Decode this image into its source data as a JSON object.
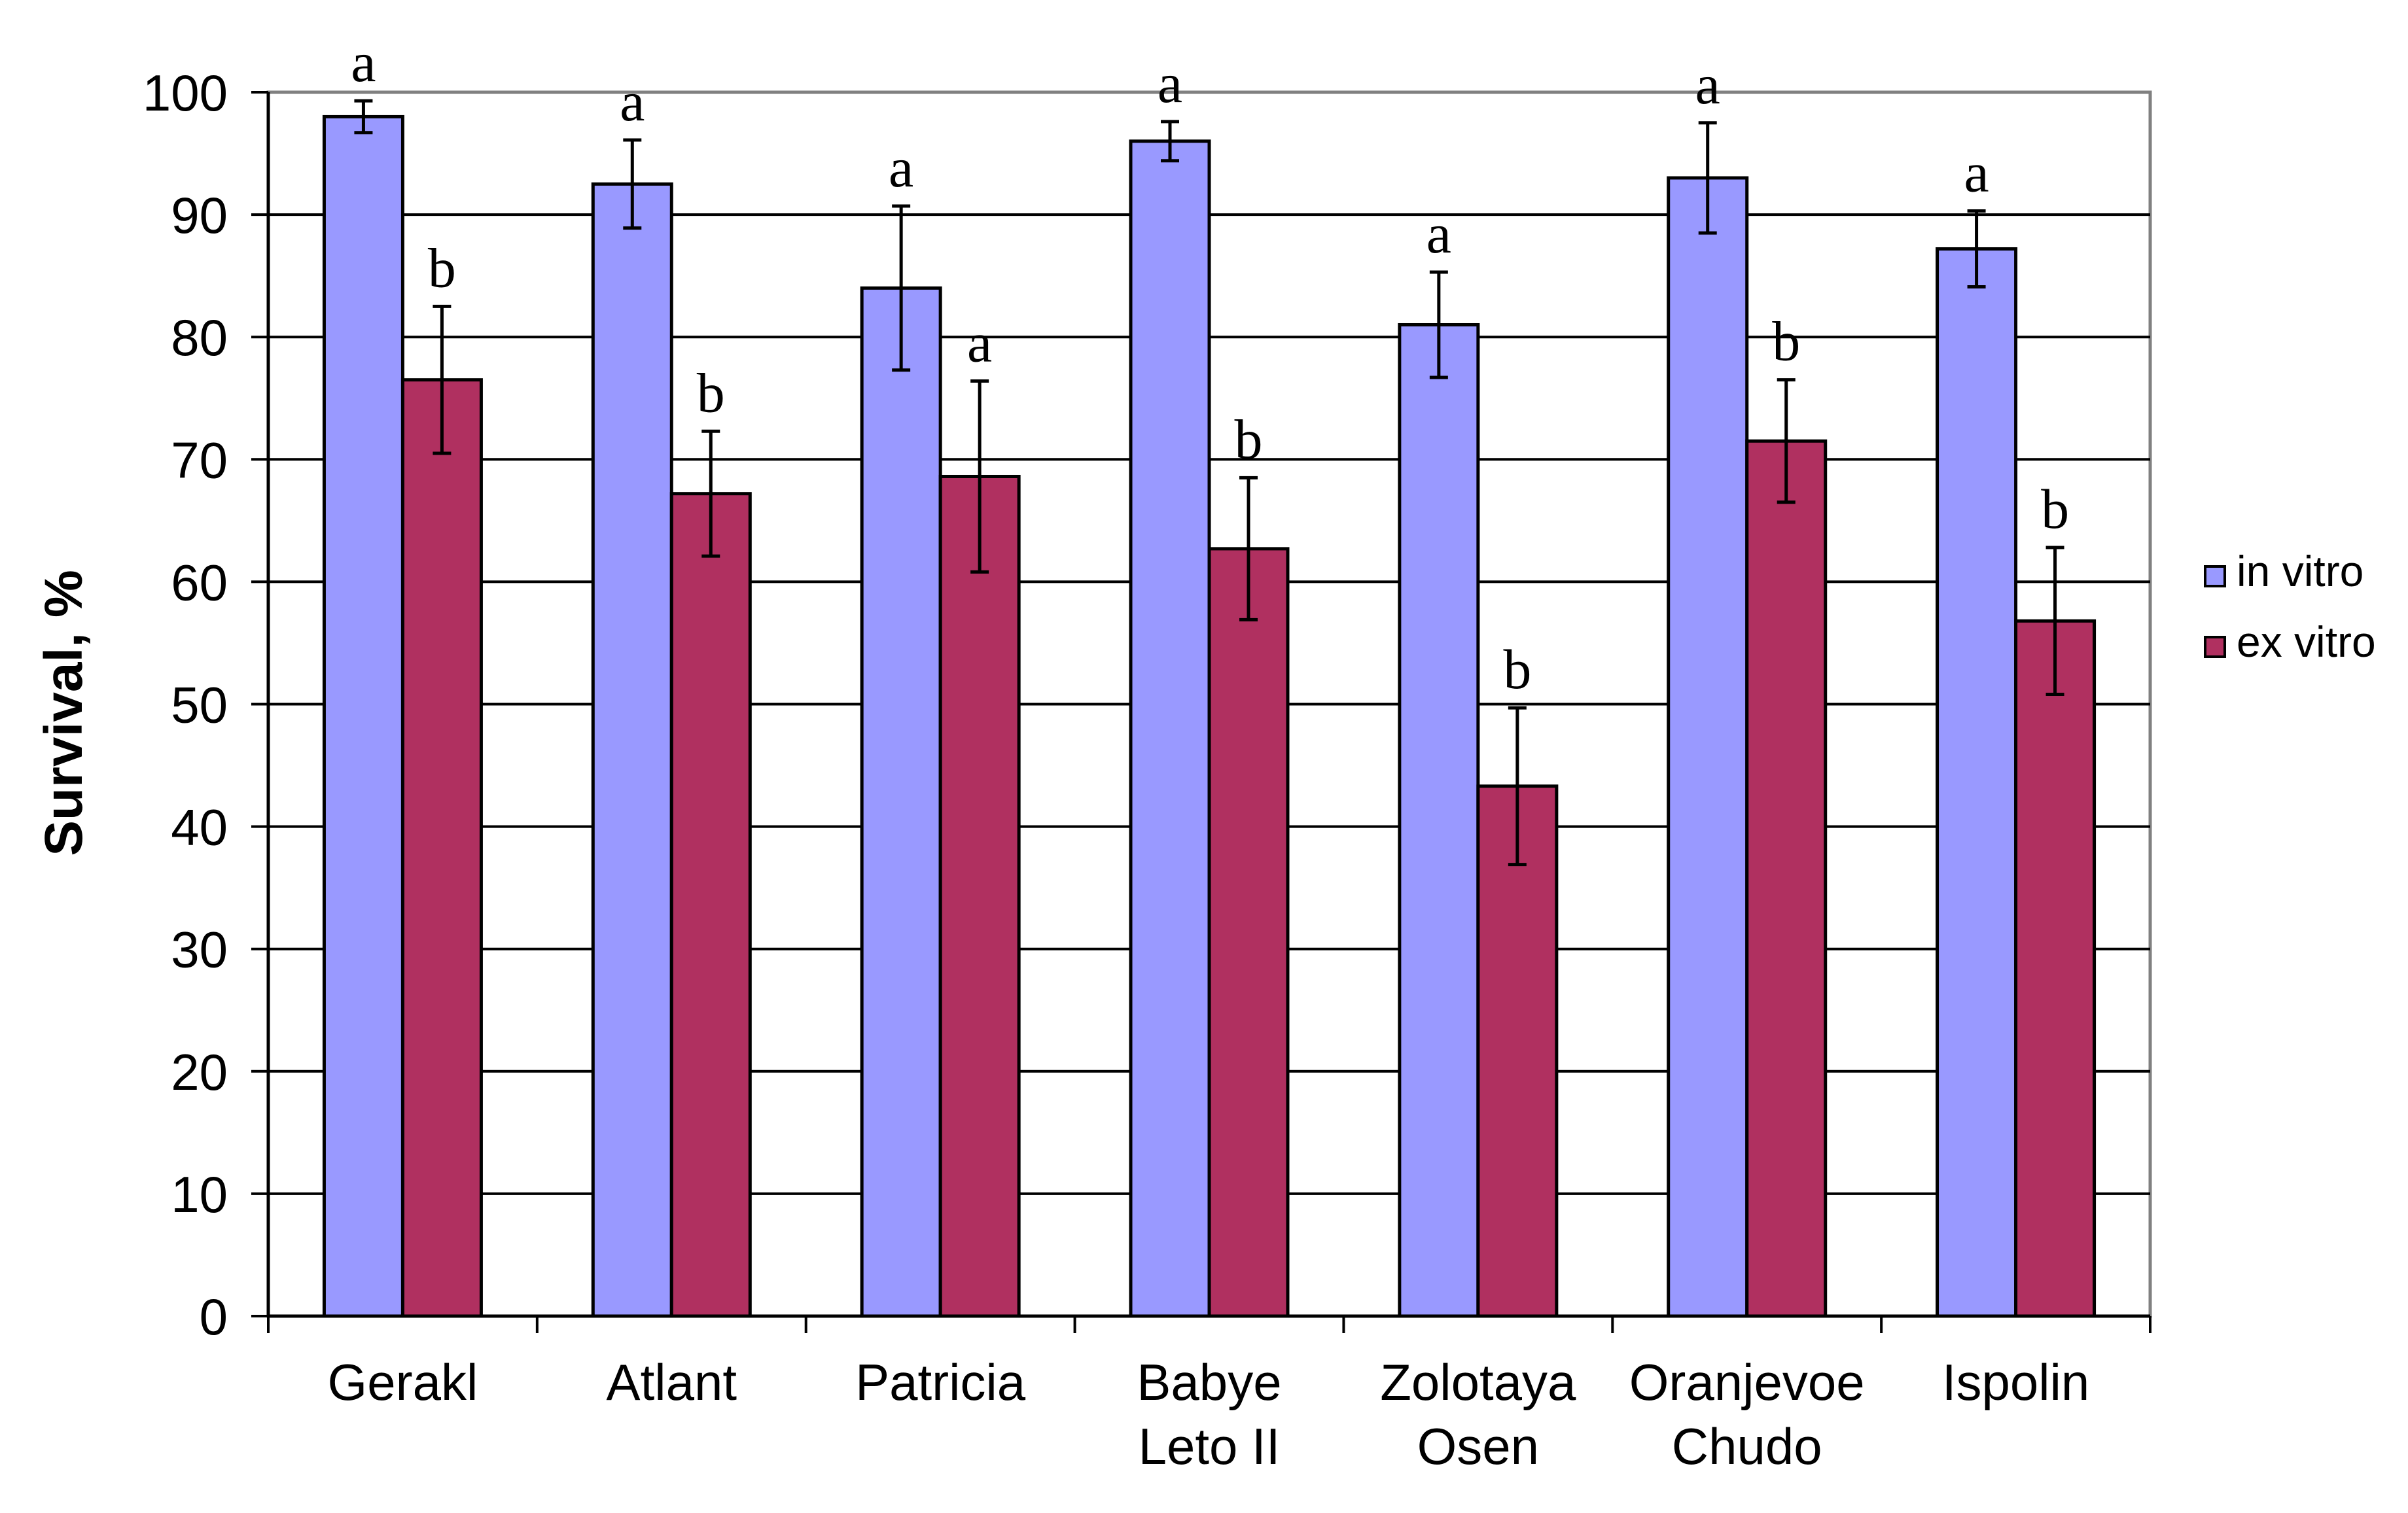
{
  "chart_data": {
    "type": "bar",
    "title": "",
    "xlabel": "",
    "ylabel": "Survival, %",
    "ylim": [
      0,
      100
    ],
    "yticks": [
      0,
      10,
      20,
      30,
      40,
      50,
      60,
      70,
      80,
      90,
      100
    ],
    "grid": true,
    "legend_position": "right",
    "categories": [
      [
        "Gerakl"
      ],
      [
        "Atlant"
      ],
      [
        "Patricia"
      ],
      [
        "Babye",
        "Leto II"
      ],
      [
        "Zolotaya",
        "Osen"
      ],
      [
        "Oranjevoe",
        "Chudo"
      ],
      [
        "Ispolin"
      ]
    ],
    "series": [
      {
        "name": "in vitro",
        "color": "#9999ff",
        "values": [
          98,
          92.5,
          84,
          96,
          81,
          93,
          87.2
        ],
        "errors": [
          1.3,
          3.6,
          6.7,
          1.6,
          4.3,
          4.5,
          3.1
        ],
        "letters": [
          "a",
          "a",
          "a",
          "a",
          "a",
          "a",
          "a"
        ]
      },
      {
        "name": "ex vitro",
        "color": "#b03060",
        "values": [
          76.5,
          67.2,
          68.6,
          62.7,
          43.3,
          71.5,
          56.8
        ],
        "errors": [
          6,
          5.1,
          7.8,
          5.8,
          6.4,
          5,
          6
        ],
        "letters": [
          "b",
          "b",
          "a",
          "b",
          "b",
          "b",
          "b"
        ]
      }
    ]
  }
}
